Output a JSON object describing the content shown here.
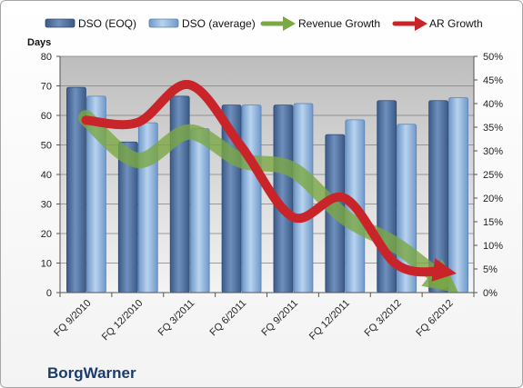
{
  "chart_data": {
    "type": "bar",
    "company": "BorgWarner",
    "ylabel": "Days",
    "categories": [
      "FQ 9/2010",
      "FQ 12/2010",
      "FQ 3/2011",
      "FQ 6/2011",
      "FQ 9/2011",
      "FQ 12/2011",
      "FQ 3/2012",
      "FQ 6/2012"
    ],
    "ylim": [
      0,
      80
    ],
    "yticks": [
      0,
      10,
      20,
      30,
      40,
      50,
      60,
      70,
      80
    ],
    "y2lim": [
      0,
      0.5
    ],
    "y2ticks": [
      "0%",
      "5%",
      "10%",
      "15%",
      "20%",
      "25%",
      "30%",
      "35%",
      "40%",
      "45%",
      "50%"
    ],
    "grid": true,
    "legend_position": "top",
    "bar_series": [
      {
        "name": "DSO (EOQ)",
        "values": [
          69.5,
          51,
          66.5,
          63.5,
          63.5,
          53.5,
          65,
          65
        ],
        "color": "#4a6c9e"
      },
      {
        "name": "DSO (average)",
        "values": [
          66.5,
          57.5,
          55.5,
          63.5,
          64,
          58.5,
          57,
          66
        ],
        "color": "#8eb4de"
      }
    ],
    "line_series": [
      {
        "name": "Revenue Growth",
        "axis": "secondary",
        "values": [
          0.37,
          0.28,
          0.34,
          0.28,
          0.26,
          0.16,
          0.1,
          0.025
        ],
        "color": "#7aa843"
      },
      {
        "name": "AR Growth",
        "axis": "secondary",
        "values": [
          0.365,
          0.36,
          0.44,
          0.31,
          0.16,
          0.2,
          0.06,
          0.045
        ],
        "color": "#c8242a"
      }
    ]
  }
}
